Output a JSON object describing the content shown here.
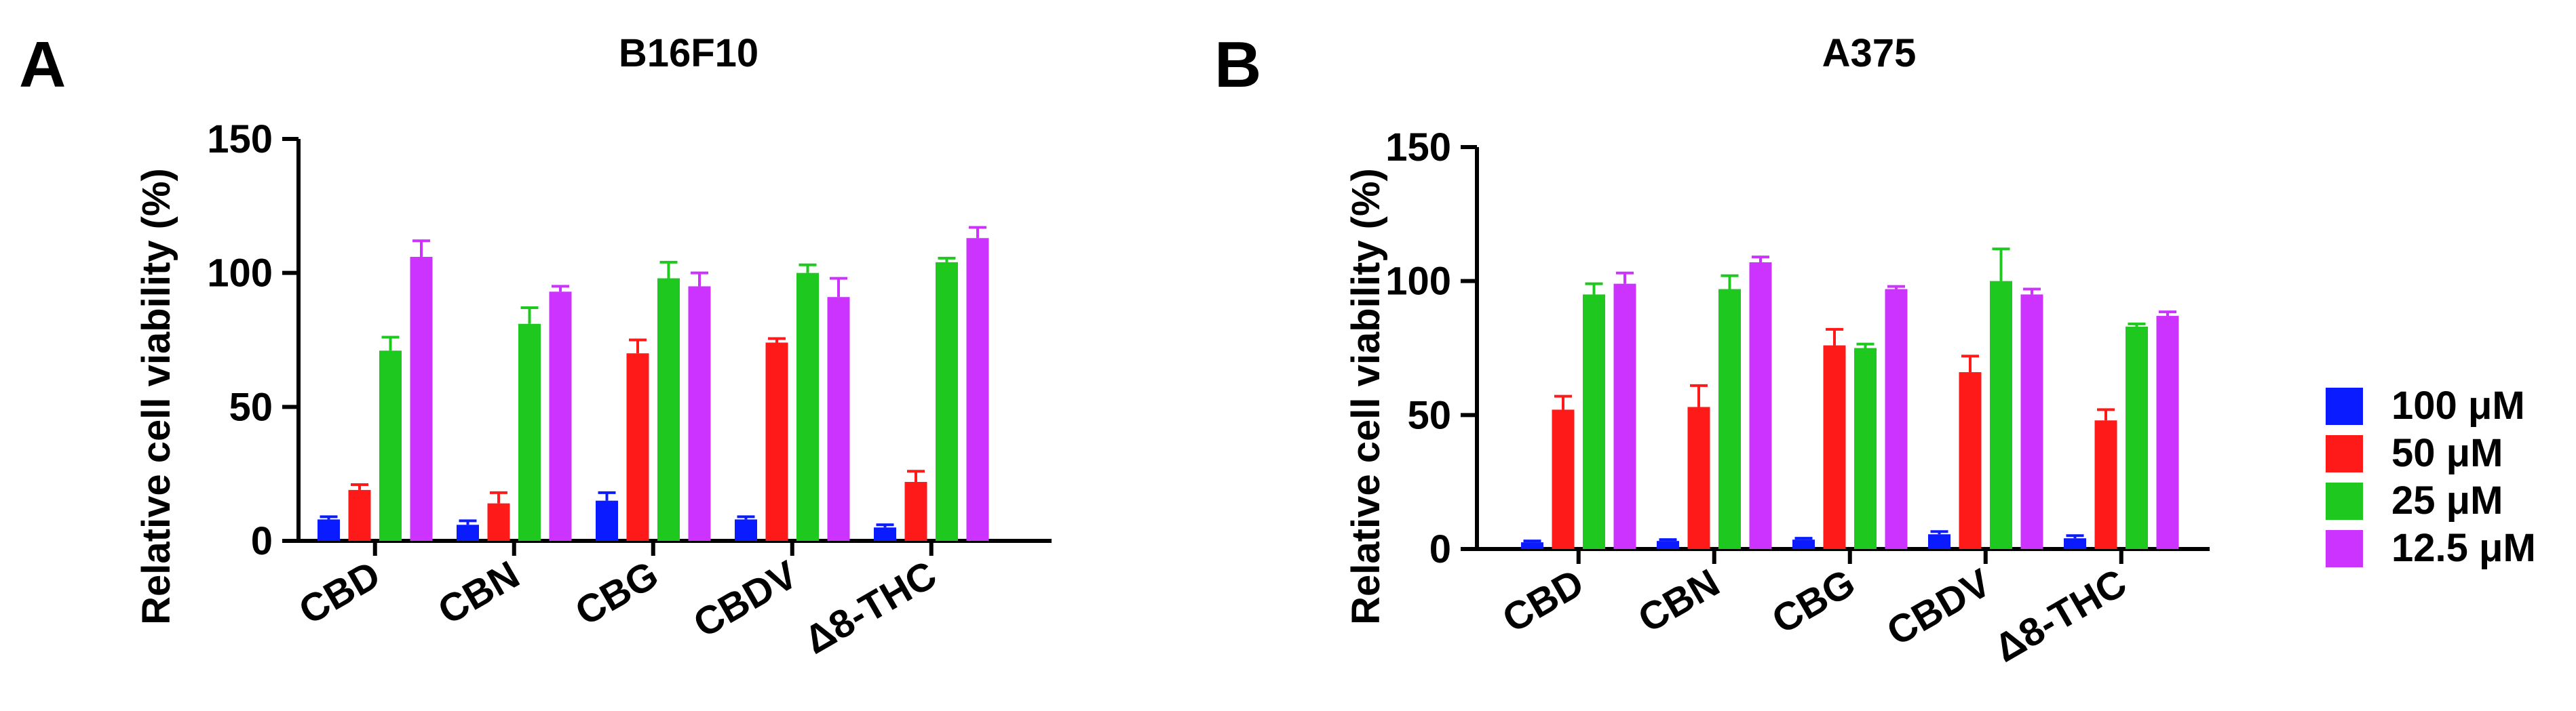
{
  "chart_data": [
    {
      "panel": "A",
      "type": "bar",
      "title": "B16F10",
      "xlabel": "",
      "ylabel": "Relative cell viability (%)",
      "ylim": [
        0,
        150
      ],
      "yticks": [
        "0",
        "50",
        "100",
        "150"
      ],
      "categories": [
        "CBD",
        "CBN",
        "CBG",
        "CBDV",
        "Δ8-THC"
      ],
      "series": [
        {
          "name": "100 μM",
          "color": "#0b1bff",
          "values": [
            8,
            6,
            15,
            8,
            5
          ],
          "errors": [
            1,
            1.5,
            3,
            1,
            1
          ]
        },
        {
          "name": "50 μM",
          "color": "#ff1a1a",
          "values": [
            19,
            14,
            70,
            74,
            22
          ],
          "errors": [
            2,
            4,
            5,
            1.5,
            4
          ]
        },
        {
          "name": "25 μM",
          "color": "#1ec81e",
          "values": [
            71,
            81,
            98,
            100,
            104
          ],
          "errors": [
            5,
            6,
            6,
            3,
            1.5
          ]
        },
        {
          "name": "12.5 μM",
          "color": "#cc33ff",
          "values": [
            106,
            93,
            95,
            91,
            113
          ],
          "errors": [
            6,
            2,
            5,
            7,
            4
          ]
        }
      ]
    },
    {
      "panel": "B",
      "type": "bar",
      "title": "A375",
      "xlabel": "",
      "ylabel": "Relative cell viability (%)",
      "ylim": [
        0,
        150
      ],
      "yticks": [
        "0",
        "50",
        "100",
        "150"
      ],
      "categories": [
        "CBD",
        "CBN",
        "CBG",
        "CBDV",
        "Δ8-THC"
      ],
      "series": [
        {
          "name": "100 μM",
          "color": "#0b1bff",
          "values": [
            2.5,
            3,
            3.5,
            5.5,
            4
          ],
          "errors": [
            0.5,
            0.5,
            0.5,
            1,
            1
          ]
        },
        {
          "name": "50 μM",
          "color": "#ff1a1a",
          "values": [
            52,
            53,
            76,
            66,
            48
          ],
          "errors": [
            5,
            8,
            6,
            6,
            4
          ]
        },
        {
          "name": "25 μM",
          "color": "#1ec81e",
          "values": [
            95,
            97,
            75,
            100,
            83
          ],
          "errors": [
            4,
            5,
            1.5,
            12,
            1
          ]
        },
        {
          "name": "12.5 μM",
          "color": "#cc33ff",
          "values": [
            99,
            107,
            97,
            95,
            87
          ],
          "errors": [
            4,
            2,
            1,
            2,
            1.5
          ]
        }
      ]
    }
  ],
  "legend": {
    "items": [
      {
        "label": "100 μM",
        "color": "#0b1bff"
      },
      {
        "label": "50 μM",
        "color": "#ff1a1a"
      },
      {
        "label": "25 μM",
        "color": "#1ec81e"
      },
      {
        "label": "12.5 μM",
        "color": "#cc33ff"
      }
    ]
  }
}
